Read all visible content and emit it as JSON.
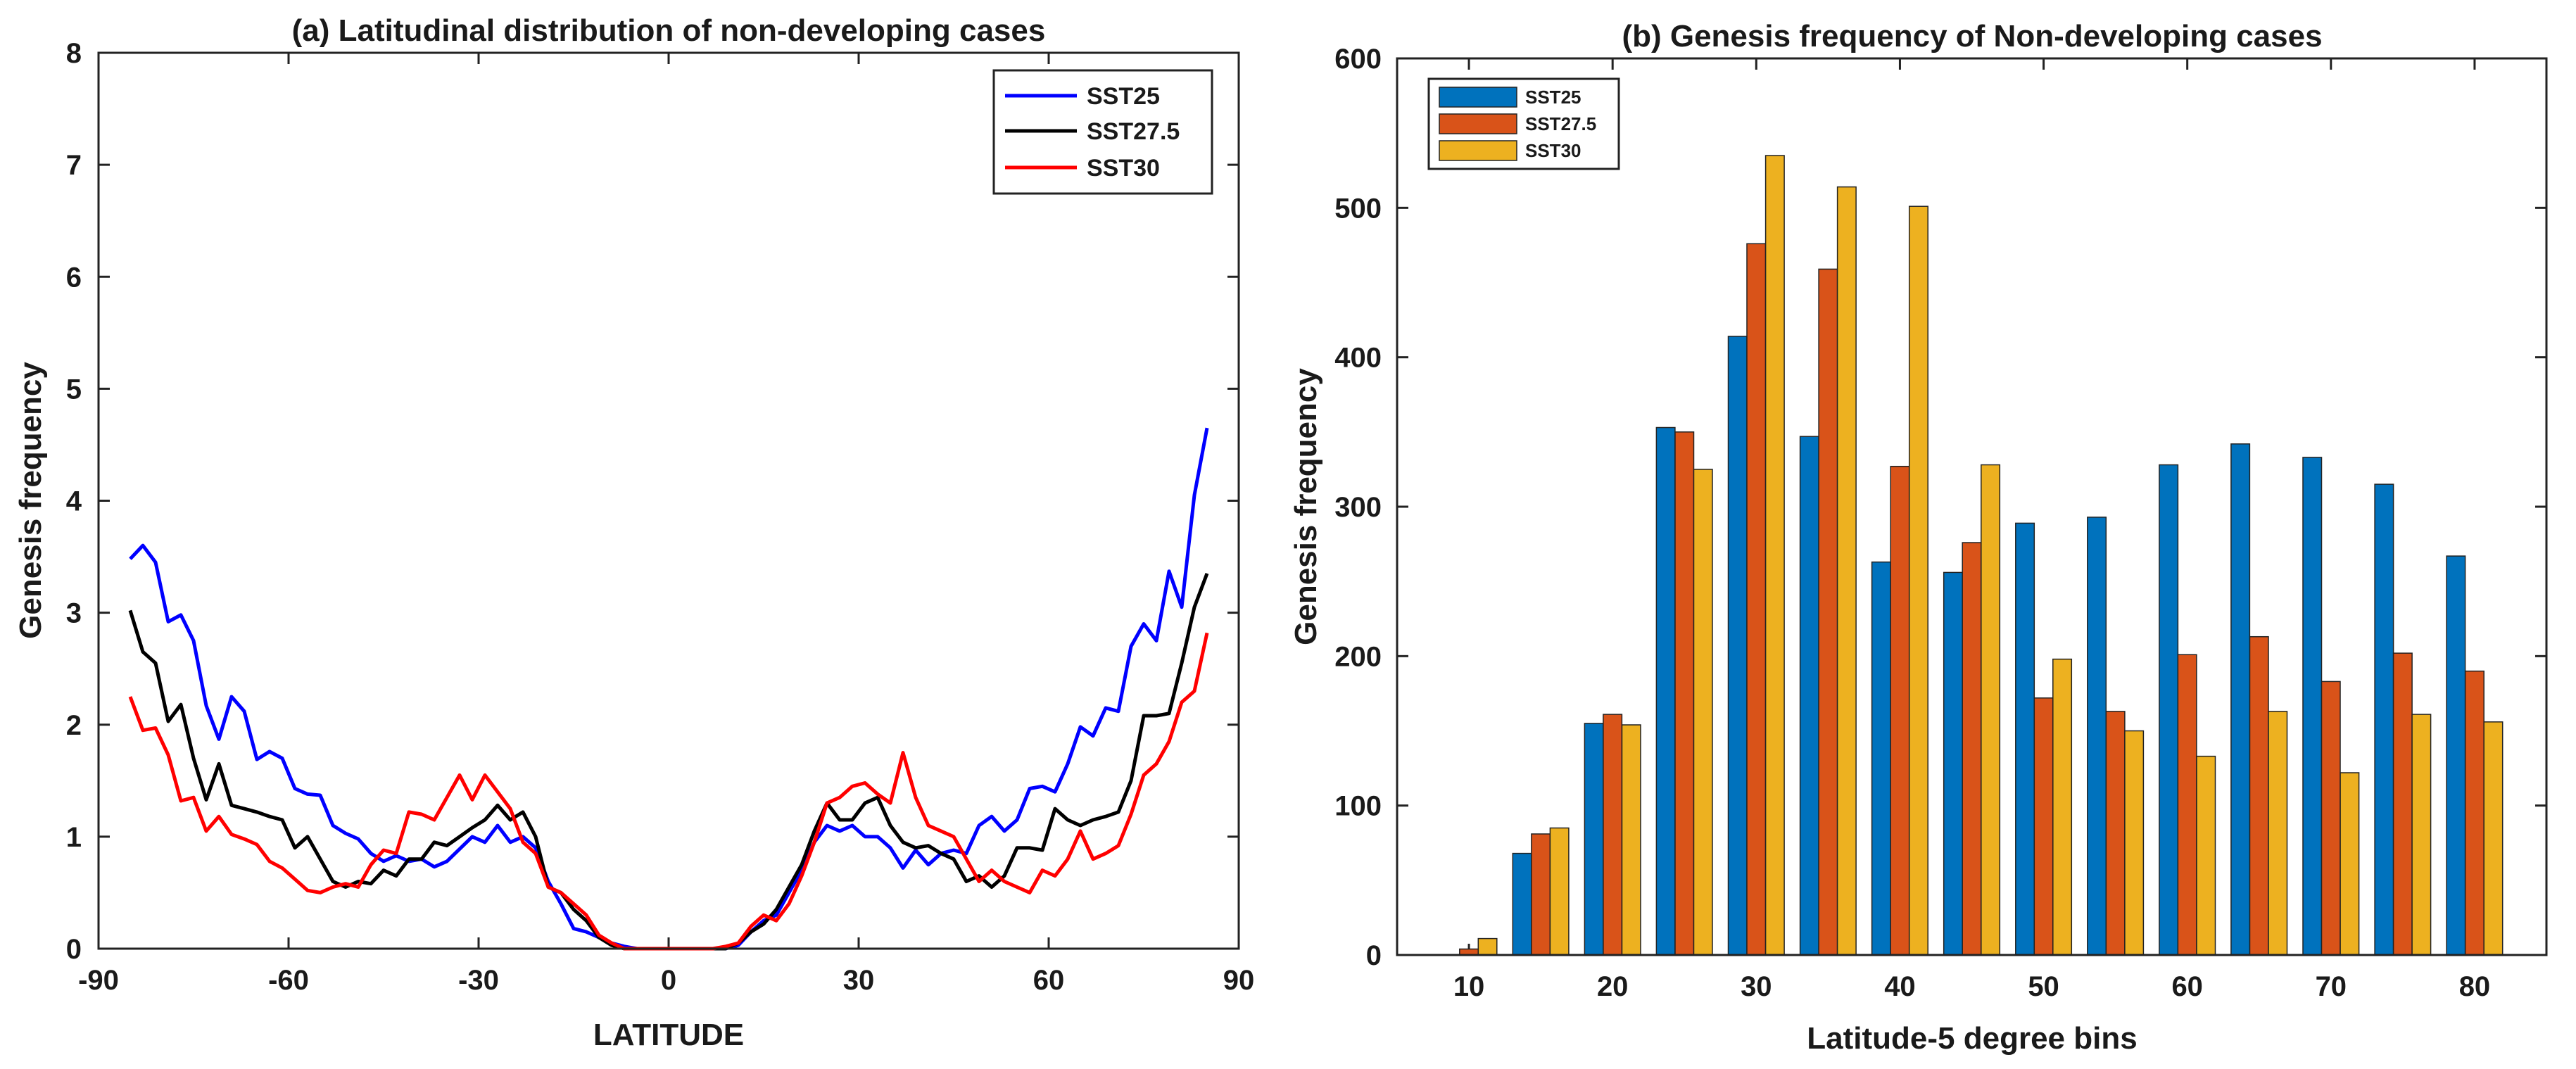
{
  "chart_data": [
    {
      "type": "line",
      "title": "(a) Latitudinal distribution of non-developing cases",
      "xlabel": "LATITUDE",
      "ylabel": "Genesis frequency",
      "xlim": [
        -90,
        90
      ],
      "ylim": [
        0,
        8
      ],
      "xticks": [
        "-90",
        "-60",
        "-30",
        "0",
        "30",
        "60",
        "90"
      ],
      "yticks": [
        "0",
        "1",
        "2",
        "3",
        "4",
        "5",
        "6",
        "7",
        "8"
      ],
      "legend_position": "top-right",
      "x": [
        -85,
        -83,
        -81,
        -79,
        -77,
        -75,
        -73,
        -71,
        -69,
        -67,
        -65,
        -63,
        -61,
        -59,
        -57,
        -55,
        -53,
        -51,
        -49,
        -47,
        -45,
        -43,
        -41,
        -39,
        -37,
        -35,
        -33,
        -31,
        -29,
        -27,
        -25,
        -23,
        -21,
        -19,
        -17,
        -15,
        -13,
        -11,
        -9,
        -7,
        -5,
        -3,
        -1,
        1,
        3,
        5,
        7,
        9,
        11,
        13,
        15,
        17,
        19,
        21,
        23,
        25,
        27,
        29,
        31,
        33,
        35,
        37,
        39,
        41,
        43,
        45,
        47,
        49,
        51,
        53,
        55,
        57,
        59,
        61,
        63,
        65,
        67,
        69,
        71,
        73,
        75,
        77,
        79,
        81,
        83,
        85
      ],
      "series": [
        {
          "name": "SST25",
          "color": "#0000ff",
          "values": [
            3.48,
            3.6,
            3.45,
            2.92,
            2.98,
            2.75,
            2.17,
            1.87,
            2.25,
            2.12,
            1.69,
            1.76,
            1.7,
            1.43,
            1.38,
            1.37,
            1.1,
            1.03,
            0.98,
            0.85,
            0.78,
            0.83,
            0.78,
            0.8,
            0.73,
            0.78,
            0.89,
            1.0,
            0.95,
            1.1,
            0.95,
            1.0,
            0.9,
            0.6,
            0.4,
            0.18,
            0.15,
            0.1,
            0.05,
            0.02,
            0.0,
            0.0,
            0.0,
            0.0,
            0.0,
            0.0,
            0.0,
            0.0,
            0.03,
            0.15,
            0.25,
            0.3,
            0.5,
            0.7,
            0.95,
            1.1,
            1.05,
            1.1,
            1.0,
            1.0,
            0.9,
            0.72,
            0.88,
            0.75,
            0.85,
            0.88,
            0.85,
            1.1,
            1.18,
            1.05,
            1.15,
            1.43,
            1.45,
            1.4,
            1.65,
            1.98,
            1.9,
            2.15,
            2.12,
            2.7,
            2.9,
            2.75,
            3.37,
            3.05,
            4.05,
            4.65
          ]
        },
        {
          "name": "SST27.5",
          "color": "#000000",
          "values": [
            3.02,
            2.65,
            2.55,
            2.03,
            2.18,
            1.7,
            1.33,
            1.65,
            1.28,
            1.25,
            1.22,
            1.18,
            1.15,
            0.9,
            1.0,
            0.8,
            0.6,
            0.55,
            0.6,
            0.58,
            0.7,
            0.65,
            0.8,
            0.8,
            0.95,
            0.92,
            1.0,
            1.08,
            1.15,
            1.28,
            1.15,
            1.22,
            1.0,
            0.55,
            0.5,
            0.35,
            0.25,
            0.1,
            0.03,
            0.0,
            0.0,
            0.0,
            0.0,
            0.0,
            0.0,
            0.0,
            0.0,
            0.0,
            0.05,
            0.15,
            0.22,
            0.35,
            0.55,
            0.75,
            1.05,
            1.3,
            1.15,
            1.15,
            1.3,
            1.35,
            1.1,
            0.95,
            0.9,
            0.92,
            0.85,
            0.8,
            0.6,
            0.65,
            0.55,
            0.65,
            0.9,
            0.9,
            0.88,
            1.25,
            1.15,
            1.1,
            1.15,
            1.18,
            1.22,
            1.5,
            2.08,
            2.08,
            2.1,
            2.55,
            3.05,
            3.35
          ]
        },
        {
          "name": "SST30",
          "color": "#ff0000",
          "values": [
            2.25,
            1.95,
            1.97,
            1.73,
            1.32,
            1.35,
            1.05,
            1.18,
            1.02,
            0.98,
            0.93,
            0.78,
            0.72,
            0.62,
            0.52,
            0.5,
            0.55,
            0.58,
            0.55,
            0.75,
            0.88,
            0.85,
            1.22,
            1.2,
            1.15,
            1.35,
            1.55,
            1.33,
            1.55,
            1.4,
            1.25,
            0.95,
            0.85,
            0.55,
            0.5,
            0.4,
            0.3,
            0.12,
            0.05,
            0.0,
            0.0,
            0.0,
            0.0,
            0.0,
            0.0,
            0.0,
            0.0,
            0.02,
            0.05,
            0.2,
            0.3,
            0.25,
            0.4,
            0.65,
            0.95,
            1.3,
            1.35,
            1.45,
            1.48,
            1.38,
            1.3,
            1.75,
            1.35,
            1.1,
            1.05,
            1.0,
            0.8,
            0.6,
            0.7,
            0.6,
            0.55,
            0.5,
            0.7,
            0.65,
            0.8,
            1.05,
            0.8,
            0.85,
            0.92,
            1.2,
            1.55,
            1.65,
            1.85,
            2.2,
            2.3,
            2.82
          ]
        }
      ]
    },
    {
      "type": "bar",
      "title": "(b) Genesis frequency of Non-developing cases",
      "xlabel": "Latitude-5 degree bins",
      "ylabel": "Genesis frequency",
      "xlim": [
        5,
        85
      ],
      "ylim": [
        0,
        600
      ],
      "xticks": [
        "10",
        "20",
        "30",
        "40",
        "50",
        "60",
        "70",
        "80"
      ],
      "yticks": [
        "0",
        "100",
        "200",
        "300",
        "400",
        "500",
        "600"
      ],
      "legend_position": "top-left",
      "categories": [
        10,
        15,
        20,
        25,
        30,
        35,
        40,
        45,
        50,
        55,
        60,
        65,
        70,
        75,
        80
      ],
      "series": [
        {
          "name": "SST25",
          "color": "#0072bd",
          "values": [
            0,
            68,
            155,
            353,
            414,
            347,
            263,
            256,
            289,
            293,
            328,
            342,
            333,
            315,
            267
          ]
        },
        {
          "name": "SST27.5",
          "color": "#d95319",
          "values": [
            4,
            81,
            161,
            350,
            476,
            459,
            327,
            276,
            172,
            163,
            201,
            213,
            183,
            202,
            190
          ]
        },
        {
          "name": "SST30",
          "color": "#edb120",
          "values": [
            11,
            85,
            154,
            325,
            535,
            514,
            501,
            328,
            198,
            150,
            133,
            163,
            122,
            161,
            156
          ]
        }
      ]
    }
  ]
}
